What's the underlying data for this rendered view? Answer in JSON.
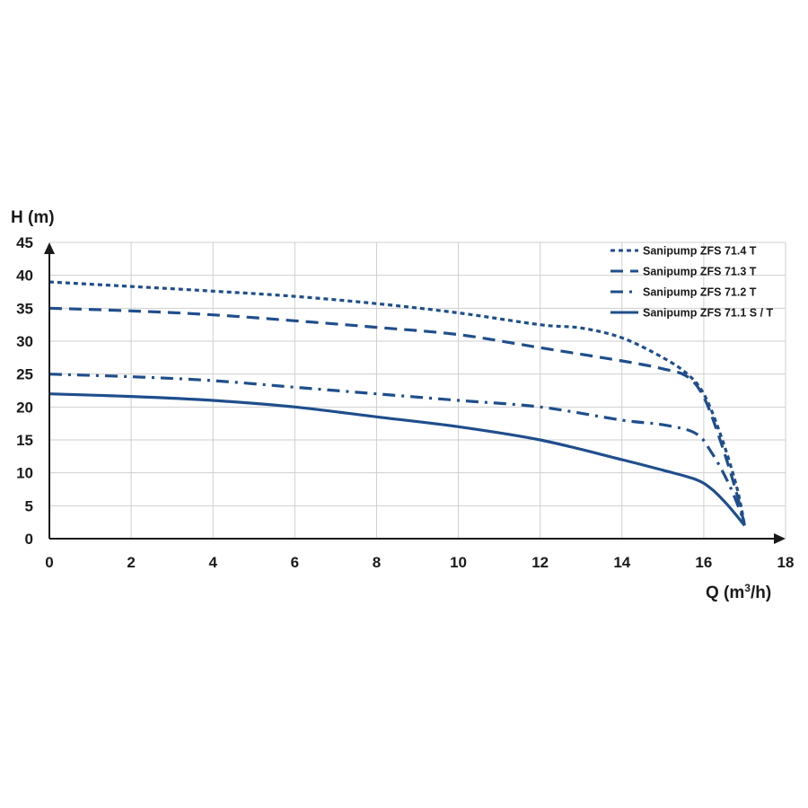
{
  "chart_data": {
    "type": "line",
    "xlabel": "Q (m",
    "xlabel_sup": "3",
    "xlabel_end": "/h)",
    "ylabel": "H (m)",
    "xlim": [
      0,
      18
    ],
    "ylim": [
      0,
      45
    ],
    "x_ticks": [
      0,
      2,
      4,
      6,
      8,
      10,
      12,
      14,
      16,
      18
    ],
    "y_ticks": [
      0,
      5,
      10,
      15,
      20,
      25,
      30,
      35,
      40,
      45
    ],
    "grid": true,
    "legend_position": "top-right",
    "line_color": "#1f4e8c",
    "series": [
      {
        "name": "Sanipump ZFS 71.4 T",
        "style": "dotted",
        "x": [
          0,
          2,
          4,
          6,
          8,
          10,
          12,
          13,
          14,
          15,
          15.6,
          16,
          16.4,
          16.8,
          17
        ],
        "y": [
          39,
          38.3,
          37.6,
          36.8,
          35.7,
          34.3,
          32.5,
          32,
          30.5,
          27.5,
          25,
          22,
          16,
          8,
          2
        ]
      },
      {
        "name": "Sanipump ZFS 71.3 T",
        "style": "dashed",
        "x": [
          0,
          2,
          4,
          6,
          8,
          10,
          12,
          14,
          15,
          15.6,
          16,
          16.4,
          16.8,
          17
        ],
        "y": [
          35,
          34.6,
          34,
          33.1,
          32.1,
          31,
          29,
          27,
          25.8,
          24.6,
          21.5,
          15,
          7,
          2
        ]
      },
      {
        "name": "Sanipump ZFS 71.2 T",
        "style": "dash-dot",
        "x": [
          0,
          2,
          4,
          6,
          8,
          10,
          12,
          14,
          15,
          15.8,
          16.2,
          16.6,
          16.9,
          17
        ],
        "y": [
          25,
          24.6,
          24,
          23,
          22,
          21,
          20,
          18,
          17.3,
          16,
          13,
          8.5,
          4,
          2
        ]
      },
      {
        "name": "Sanipump ZFS 71.1 S / T",
        "style": "solid",
        "x": [
          0,
          2,
          4,
          6,
          8,
          10,
          12,
          14,
          15,
          15.8,
          16.2,
          16.6,
          17
        ],
        "y": [
          22,
          21.6,
          21,
          20,
          18.5,
          17,
          15,
          12,
          10.4,
          9,
          7.5,
          5,
          2
        ]
      }
    ]
  }
}
